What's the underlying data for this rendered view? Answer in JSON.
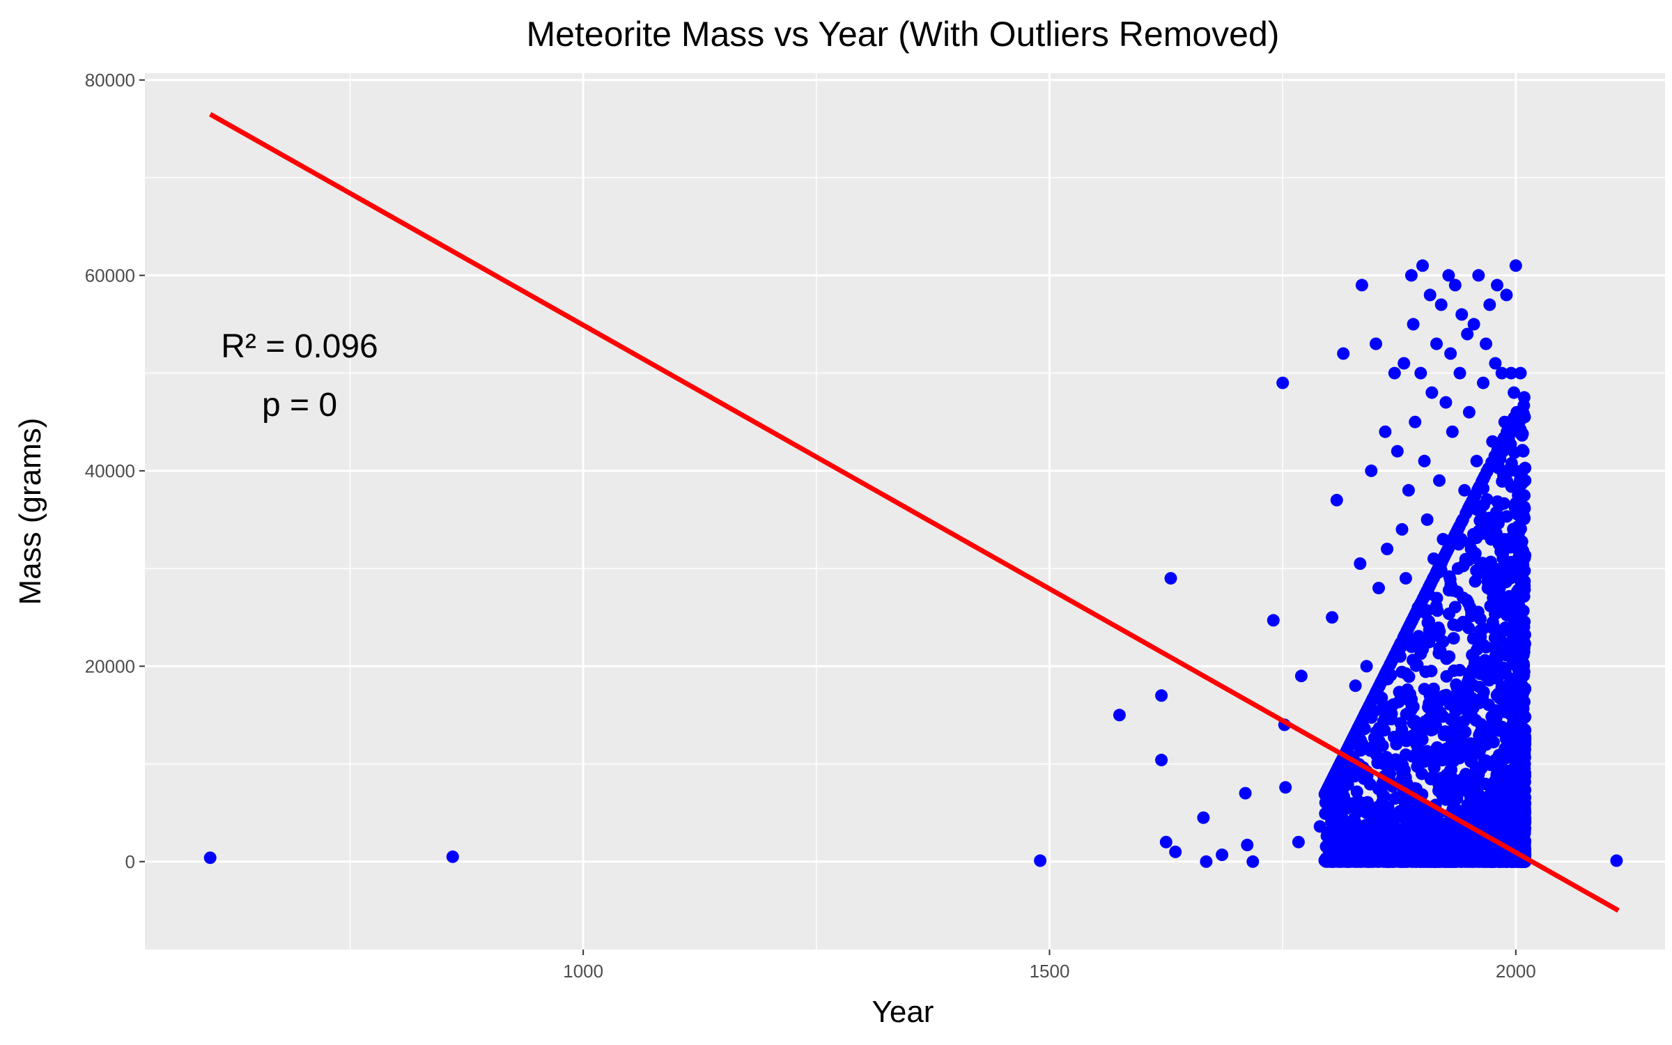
{
  "chart_data": {
    "type": "scatter",
    "title": "Meteorite Mass vs Year (With Outliers Removed)",
    "xlabel": "Year",
    "ylabel": "Mass (grams)",
    "xlim": [
      530,
      2160
    ],
    "ylim": [
      -9000,
      80700
    ],
    "x_ticks": [
      1000,
      1500,
      2000
    ],
    "x_tick_labels": [
      "1000",
      "1500",
      "2000"
    ],
    "y_ticks": [
      0,
      20000,
      40000,
      60000,
      80000
    ],
    "y_tick_labels": [
      "0",
      "20000",
      "40000",
      "60000",
      "80000"
    ],
    "grid": true,
    "legend": "none",
    "colors": {
      "points": "#0000ff",
      "fit_line": "#ff0000",
      "panel_background": "#ebebeb",
      "grid": "#ffffff"
    },
    "annotation": {
      "r_squared": "R² =  0.096",
      "p_value": "p =  0"
    },
    "fit_line": {
      "x": [
        600,
        2110
      ],
      "y": [
        76500,
        -5000
      ]
    },
    "outlier_points": {
      "x": [
        600,
        860,
        1490,
        1575,
        1620,
        1625,
        1630,
        1635,
        1620,
        1665,
        1668,
        1685,
        1710,
        1712,
        1718,
        1740,
        1750,
        1752,
        1753,
        1767,
        1770,
        1790,
        1798,
        1803,
        1805,
        1808,
        1812,
        1815,
        1820,
        1828,
        1833,
        1835,
        1840,
        1845,
        1850,
        1853,
        1858,
        1860,
        1862,
        1865,
        1870,
        1873,
        1876,
        1878,
        1880,
        1882,
        1885,
        1888,
        1890,
        1892,
        1895,
        1898,
        1900,
        1902,
        1905,
        1908,
        1910,
        1912,
        1915,
        1918,
        1920,
        1922,
        1925,
        1928,
        1930,
        1932,
        1935,
        1938,
        1940,
        1942,
        1945,
        1948,
        1950,
        1952,
        1955,
        1958,
        1960,
        1962,
        1965,
        1968,
        1970,
        1972,
        1975,
        1978,
        1980,
        1982,
        1985,
        1988,
        1990,
        1992,
        1995,
        1998,
        2000,
        2003,
        2005,
        2008,
        2010,
        2108
      ],
      "y": [
        400,
        500,
        100,
        15000,
        10400,
        2000,
        29000,
        1000,
        17000,
        4500,
        0,
        700,
        7000,
        1700,
        0,
        24700,
        49000,
        14000,
        7600,
        2000,
        19000,
        3600,
        3000,
        25000,
        3000,
        37000,
        8000,
        52000,
        6000,
        18000,
        30500,
        59000,
        20000,
        40000,
        53000,
        28000,
        16000,
        44000,
        32000,
        9000,
        50000,
        42000,
        21000,
        34000,
        51000,
        29000,
        38000,
        60000,
        55000,
        45000,
        26000,
        50000,
        61000,
        41000,
        35000,
        58000,
        48000,
        31000,
        53000,
        39000,
        57000,
        33000,
        47000,
        60000,
        52000,
        44000,
        59000,
        30000,
        50000,
        56000,
        38000,
        54000,
        46000,
        32000,
        55000,
        41000,
        60000,
        36000,
        49000,
        53000,
        28000,
        57000,
        43000,
        51000,
        59000,
        35000,
        50000,
        45000,
        58000,
        40000,
        50000,
        48000,
        61000,
        44000,
        50000,
        42000,
        39000,
        100
      ]
    }
  }
}
